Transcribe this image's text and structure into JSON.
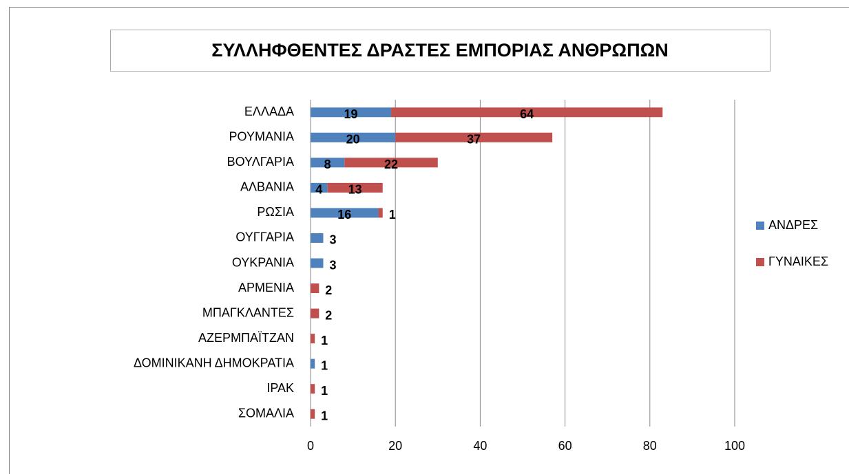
{
  "chart_data": {
    "type": "stacked-barh",
    "title": "ΣΥΛΛΗΦΘΕΝΤΕΣ ΔΡΑΣΤΕΣ ΕΜΠΟΡΙΑΣ ΑΝΘΡΩΠΩΝ",
    "categories": [
      "ΕΛΛΑΔΑ",
      "ΡΟΥΜΑΝΙΑ",
      "ΒΟΥΛΓΑΡΙΑ",
      "ΑΛΒΑΝΙΑ",
      "ΡΩΣΙΑ",
      "ΟΥΓΓΑΡΙΑ",
      "ΟΥΚΡΑΝΙΑ",
      "ΑΡΜΕΝΙΑ",
      "ΜΠΑΓΚΛΑΝΤΕΣ",
      "ΑΖΕΡΜΠΑΪΤΖΑΝ",
      "ΔΟΜΙΝΙΚΑΝΗ ΔΗΜΟΚΡΑΤΙΑ",
      "ΙΡΑΚ",
      "ΣΟΜΑΛΙΑ"
    ],
    "series": [
      {
        "name": "ΑΝΔΡΕΣ",
        "color": "#4f81bd",
        "values": [
          19,
          20,
          8,
          4,
          16,
          3,
          3,
          null,
          null,
          null,
          1,
          null,
          null
        ]
      },
      {
        "name": "ΓΥΝΑΙΚΕΣ",
        "color": "#c0504d",
        "values": [
          64,
          37,
          22,
          13,
          1,
          null,
          null,
          2,
          2,
          1,
          null,
          1,
          1
        ]
      }
    ],
    "xlim": [
      0,
      100
    ],
    "xticks": [
      0,
      20,
      40,
      60,
      80,
      100
    ],
    "grid": true,
    "legend": "right"
  }
}
